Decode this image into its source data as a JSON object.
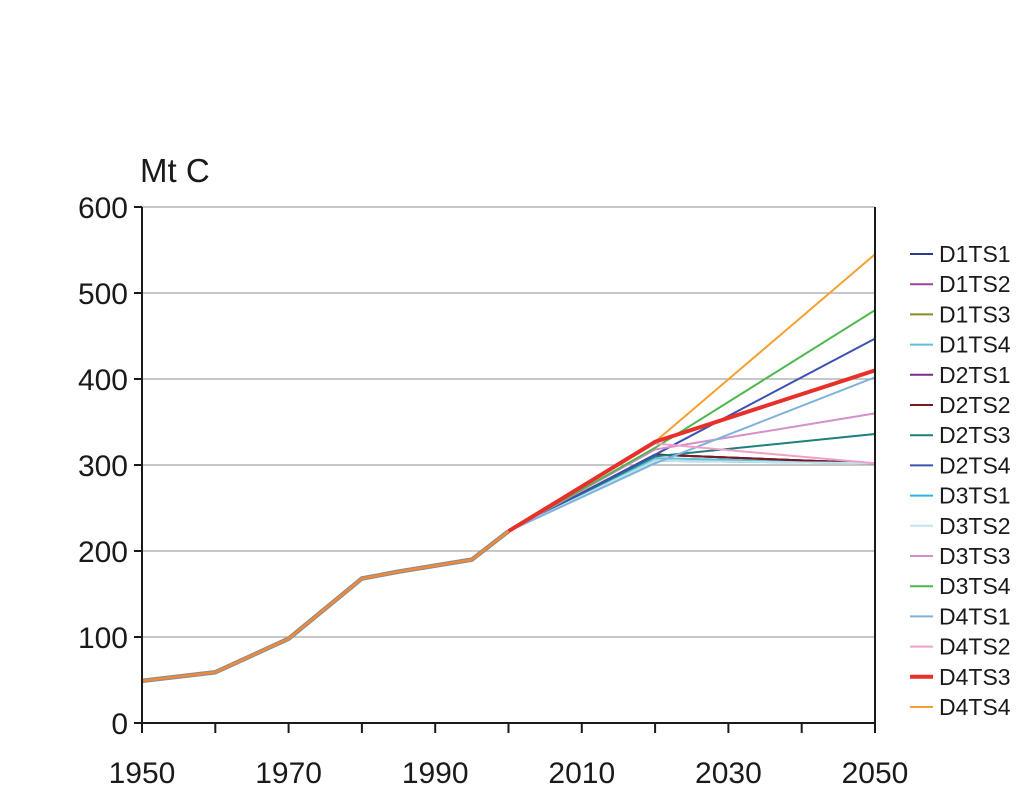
{
  "chart_data": {
    "type": "line",
    "ylabel": "Mt C",
    "xlim": [
      1950,
      2050
    ],
    "ylim": [
      0,
      600
    ],
    "x_ticks": [
      1950,
      1970,
      1990,
      2010,
      2030,
      2050
    ],
    "x_minor_ticks": [
      1960,
      1980,
      2000,
      2020,
      2040
    ],
    "y_ticks": [
      0,
      100,
      200,
      300,
      400,
      500,
      600
    ],
    "grid": "horizontal",
    "legend_position": "right",
    "history": {
      "x": [
        1950,
        1960,
        1970,
        1980,
        1985,
        1990,
        1995,
        2000
      ],
      "y": [
        49,
        59,
        98,
        168,
        176,
        183,
        190,
        223
      ]
    },
    "series": [
      {
        "name": "D1TS1",
        "color": "#2e3b8c",
        "x": [
          2000,
          2020,
          2050
        ],
        "y": [
          223,
          312,
          302
        ]
      },
      {
        "name": "D1TS2",
        "color": "#a0409a",
        "x": [
          2000,
          2020,
          2050
        ],
        "y": [
          223,
          312,
          302
        ]
      },
      {
        "name": "D1TS3",
        "color": "#8a8a2a",
        "x": [
          2000,
          2020,
          2050
        ],
        "y": [
          223,
          305,
          302
        ]
      },
      {
        "name": "D1TS4",
        "color": "#5bbfd6",
        "x": [
          2000,
          2020,
          2050
        ],
        "y": [
          223,
          308,
          302
        ]
      },
      {
        "name": "D2TS1",
        "color": "#7b2a8c",
        "x": [
          2000,
          2020,
          2050
        ],
        "y": [
          223,
          312,
          302
        ]
      },
      {
        "name": "D2TS2",
        "color": "#7a1a1a",
        "x": [
          2000,
          2020,
          2050
        ],
        "y": [
          223,
          312,
          302
        ]
      },
      {
        "name": "D2TS3",
        "color": "#1f7f7a",
        "x": [
          2000,
          2020,
          2050
        ],
        "y": [
          223,
          310,
          336
        ]
      },
      {
        "name": "D2TS4",
        "color": "#3b52b0",
        "x": [
          2000,
          2020,
          2050
        ],
        "y": [
          223,
          312,
          447
        ]
      },
      {
        "name": "D3TS1",
        "color": "#29b6e8",
        "x": [
          2000,
          2020,
          2050
        ],
        "y": [
          223,
          305,
          302
        ]
      },
      {
        "name": "D3TS2",
        "color": "#bfe3ee",
        "x": [
          2000,
          2020,
          2050
        ],
        "y": [
          223,
          305,
          302
        ]
      },
      {
        "name": "D3TS3",
        "color": "#d58fc9",
        "x": [
          2000,
          2020,
          2050
        ],
        "y": [
          223,
          318,
          360
        ]
      },
      {
        "name": "D3TS4",
        "color": "#4cb84c",
        "x": [
          2000,
          2020,
          2050
        ],
        "y": [
          223,
          320,
          480
        ]
      },
      {
        "name": "D4TS1",
        "color": "#7fb3dd",
        "x": [
          2000,
          2020,
          2050
        ],
        "y": [
          223,
          302,
          402
        ]
      },
      {
        "name": "D4TS2",
        "color": "#f0a0c8",
        "x": [
          2000,
          2020,
          2050
        ],
        "y": [
          223,
          325,
          302
        ]
      },
      {
        "name": "D4TS3",
        "color": "#e8302a",
        "x": [
          2000,
          2020,
          2050
        ],
        "y": [
          223,
          327,
          410
        ],
        "bold": true
      },
      {
        "name": "D4TS4",
        "color": "#f5a030",
        "x": [
          2000,
          2020,
          2050
        ],
        "y": [
          223,
          327,
          545
        ]
      }
    ],
    "history_color": "#f08a3a"
  }
}
